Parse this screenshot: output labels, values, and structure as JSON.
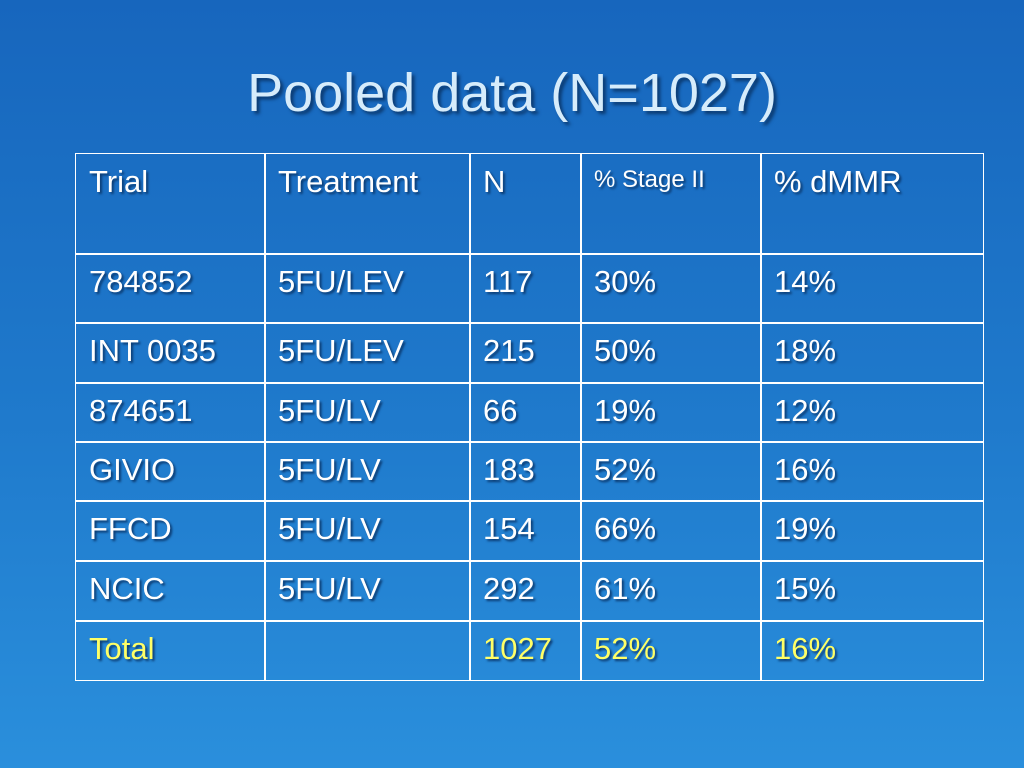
{
  "title": "Pooled data (N=1027)",
  "table": {
    "header": [
      "Trial",
      "Treatment",
      "N",
      "% Stage II",
      "% dMMR"
    ],
    "rows": [
      [
        "784852",
        "5FU/LEV",
        "117",
        "30%",
        "14%"
      ],
      [
        "INT 0035",
        "5FU/LEV",
        "215",
        "50%",
        "18%"
      ],
      [
        "874651",
        "5FU/LV",
        "66",
        "19%",
        "12%"
      ],
      [
        "GIVIO",
        "5FU/LV",
        "183",
        "52%",
        "16%"
      ],
      [
        "FFCD",
        "5FU/LV",
        "154",
        "66%",
        "19%"
      ],
      [
        "NCIC",
        "5FU/LV",
        "292",
        "61%",
        "15%"
      ],
      [
        "Total",
        null,
        "1027",
        "52%",
        "16%"
      ]
    ]
  }
}
